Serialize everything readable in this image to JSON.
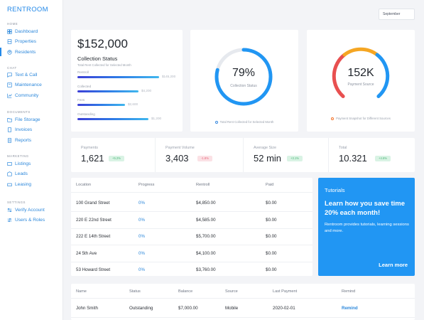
{
  "app": {
    "brand": "RENTROOM"
  },
  "sidebar": {
    "sections": [
      {
        "title": "HOME",
        "items": [
          {
            "label": "Dashboard",
            "icon": "dashboard-icon"
          },
          {
            "label": "Properties",
            "icon": "building-icon"
          },
          {
            "label": "Residents",
            "icon": "people-icon",
            "active": true
          }
        ]
      },
      {
        "title": "CHAT",
        "items": [
          {
            "label": "Text & Call",
            "icon": "chat-icon"
          },
          {
            "label": "Maintenance",
            "icon": "wrench-icon"
          },
          {
            "label": "Community",
            "icon": "chart-icon"
          }
        ]
      },
      {
        "title": "DOCUMENTS",
        "items": [
          {
            "label": "File Storage",
            "icon": "folder-icon"
          },
          {
            "label": "Invoices",
            "icon": "invoice-icon"
          },
          {
            "label": "Reports",
            "icon": "report-icon"
          }
        ]
      },
      {
        "title": "MARKETING",
        "items": [
          {
            "label": "Listings",
            "icon": "listing-icon"
          },
          {
            "label": "Leads",
            "icon": "leads-icon"
          },
          {
            "label": "Leasing",
            "icon": "key-icon"
          }
        ]
      },
      {
        "title": "SETTINGS",
        "items": [
          {
            "label": "Verify Account",
            "icon": "verify-icon"
          },
          {
            "label": "Users & Roles",
            "icon": "roles-icon"
          }
        ]
      }
    ]
  },
  "filter": {
    "month": "September"
  },
  "summary": {
    "amount": "$152,000",
    "title": "Collection Status",
    "caption": "Total Rent Collected for Selected Month",
    "bars": [
      {
        "label": "Rentroll",
        "value": "$145,200",
        "fraction": 1.0
      },
      {
        "label": "Collected",
        "value": "$4,200",
        "fraction": 0.75
      },
      {
        "label": "Fees",
        "value": "$2,600",
        "fraction": 0.58
      },
      {
        "label": "Outstanding",
        "value": "$1,200",
        "fraction": 0.87
      }
    ]
  },
  "collection": {
    "value": "79%",
    "label": "Collection Status",
    "footnote": "Total Rent Collected for Selected Month",
    "percent": 79,
    "color": "#2196f3"
  },
  "payment_source": {
    "value": "152K",
    "label": "Payment Source",
    "footnote": "Payment Snapshot for Different Sources",
    "colors": [
      "#f4742b",
      "#f5a623",
      "#2196f3"
    ]
  },
  "stats": [
    {
      "label": "Payments",
      "value": "1,621",
      "badge": "+5.2%",
      "badge_type": "green"
    },
    {
      "label": "Payment Volume",
      "value": "3,403",
      "badge": "-1.8%",
      "badge_type": "red"
    },
    {
      "label": "Average Size",
      "value": "52 min",
      "badge": "+3.1%",
      "badge_type": "green"
    },
    {
      "label": "Total",
      "value": "10.321",
      "badge": "+4.6%",
      "badge_type": "green"
    }
  ],
  "properties": {
    "headers": [
      "Location",
      "Progress",
      "Rentroll",
      "Paid"
    ],
    "rows": [
      [
        "100 Grand Street",
        "0%",
        "$4,850.00",
        "$0.00"
      ],
      [
        "220 E 22nd Street",
        "0%",
        "$4,585.00",
        "$0.00"
      ],
      [
        "222 E 14th Street",
        "0%",
        "$5,700.00",
        "$0.00"
      ],
      [
        "24 5th Ave",
        "0%",
        "$4,100.00",
        "$0.00"
      ],
      [
        "53 Howard Street",
        "0%",
        "$3,760.00",
        "$0.00"
      ]
    ]
  },
  "tutorials": {
    "heading": "Tutorials",
    "title": "Learn how you save time 20% each month!",
    "body": "Rentroom provides tutorials, learning sessions and more.",
    "link": "Learn more"
  },
  "residents": {
    "headers": [
      "Name",
      "Status",
      "Balance",
      "Source",
      "Last Payment",
      "Remind"
    ],
    "rows": [
      [
        "John Smith",
        "Outstanding",
        "$7,000.00",
        "Mobile",
        "2020-02-01",
        "Remind"
      ]
    ]
  }
}
